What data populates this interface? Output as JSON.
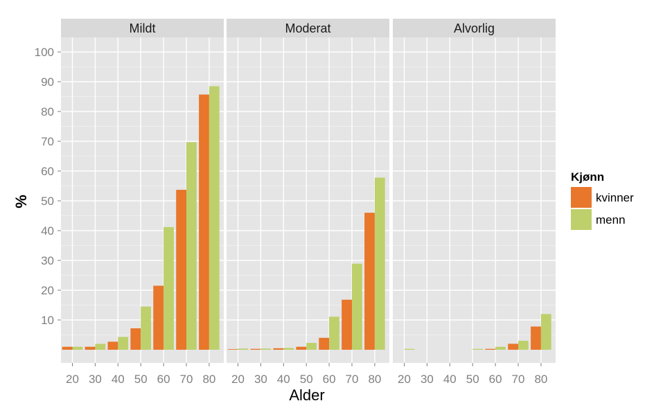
{
  "chart_data": {
    "type": "bar",
    "facets": [
      "Mildt",
      "Moderat",
      "Alvorlig"
    ],
    "categories": [
      "20",
      "30",
      "40",
      "50",
      "60",
      "70",
      "80"
    ],
    "xlabel": "Alder",
    "ylabel": "%",
    "ylim": [
      0,
      100
    ],
    "yticks": [
      10,
      20,
      30,
      40,
      50,
      60,
      70,
      80,
      90,
      100
    ],
    "grid": true,
    "legend": {
      "title": "Kjønn",
      "position": "right"
    },
    "series": [
      {
        "name": "kvinner",
        "color": "#E8762B",
        "values": {
          "Mildt": [
            1.0,
            1.0,
            2.7,
            7.2,
            21.5,
            53.7,
            85.7
          ],
          "Moderat": [
            0.2,
            0.3,
            0.5,
            1.0,
            4.0,
            16.8,
            46.0
          ],
          "Alvorlig": [
            0.0,
            0.0,
            0.0,
            0.0,
            0.3,
            2.0,
            7.8
          ]
        }
      },
      {
        "name": "menn",
        "color": "#BDD06C",
        "values": {
          "Mildt": [
            1.0,
            2.0,
            4.3,
            14.5,
            41.2,
            69.7,
            88.5
          ],
          "Moderat": [
            0.4,
            0.4,
            0.6,
            2.3,
            11.1,
            28.9,
            57.8
          ],
          "Alvorlig": [
            0.3,
            0.0,
            0.0,
            0.3,
            1.0,
            3.0,
            12.0
          ]
        }
      }
    ]
  }
}
